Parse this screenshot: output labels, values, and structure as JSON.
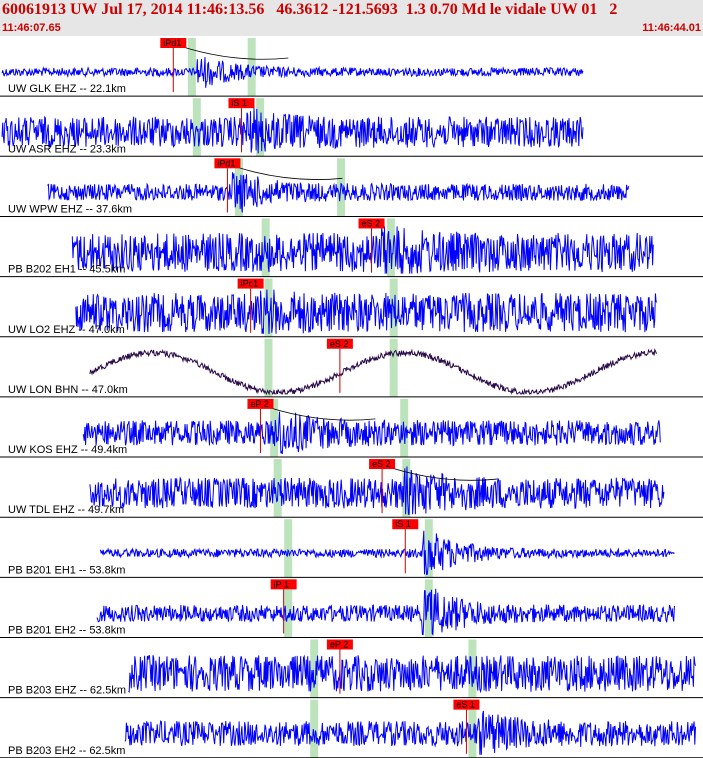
{
  "header": {
    "title": "60061913 UW Jul 17, 2014 11:46:13.56   46.3612 -121.5693  1.3 0.70 Md le vidale UW 01   2",
    "start_time": "11:46:07.65",
    "end_time": "11:46:44.01"
  },
  "colors": {
    "waveform": "#0000ff",
    "dark_waveform": "#2a0a4a",
    "pick_box": "#ff0000",
    "pick_line": "#cc0000",
    "window": "#bde3bd",
    "header_bg": "#e6e6e6",
    "header_text": "#cc0000"
  },
  "traces": [
    {
      "label": "UW GLK EHZ -- 22.1km",
      "start": 0.0,
      "end": 0.83,
      "amp": 0.15,
      "color": "blue",
      "burst": 0.29,
      "burst_gain": 4.0,
      "windows": [
        0.273,
        0.358
      ],
      "picks": [
        {
          "text": "iPd1",
          "pos": 0.228
        }
      ],
      "has_curve": true
    },
    {
      "label": "UW ASR EHZ -- 23.3km",
      "start": 0.0,
      "end": 0.83,
      "amp": 0.55,
      "color": "blue",
      "burst": 0.36,
      "burst_gain": 1.6,
      "windows": [
        0.28,
        0.37
      ],
      "picks": [
        {
          "text": "iS 1",
          "pos": 0.325
        }
      ],
      "has_curve": false
    },
    {
      "label": "UW WPW EHZ -- 37.6km",
      "start": 0.065,
      "end": 0.895,
      "amp": 0.3,
      "color": "blue",
      "burst": 0.34,
      "burst_gain": 2.6,
      "windows": [
        0.34,
        0.485
      ],
      "picks": [
        {
          "text": "iPd1",
          "pos": 0.305
        }
      ],
      "has_curve": true
    },
    {
      "label": "PB B202 EH1 -- 45.5km",
      "start": 0.1,
      "end": 0.93,
      "amp": 0.7,
      "color": "blue",
      "burst": 0.55,
      "burst_gain": 1.5,
      "windows": [
        0.378,
        0.556
      ],
      "picks": [
        {
          "text": "eS 2",
          "pos": 0.51
        }
      ],
      "has_curve": false
    },
    {
      "label": "UW LO2 EHZ -- 47.0km",
      "start": 0.105,
      "end": 0.935,
      "amp": 0.7,
      "color": "blue",
      "burst": 0.38,
      "burst_gain": 1.3,
      "windows": [
        0.382,
        0.56
      ],
      "picks": [
        {
          "text": "iPc1",
          "pos": 0.338
        }
      ],
      "has_curve": false
    },
    {
      "label": "UW LON BHN -- 47.0km",
      "start": 0.125,
      "end": 0.935,
      "amp": 0.5,
      "color": "dark",
      "burst": 0.5,
      "burst_gain": 1.0,
      "windows": [
        0.382,
        0.56
      ],
      "picks": [
        {
          "text": "eS 2",
          "pos": 0.465
        }
      ],
      "has_curve": false,
      "sine": true
    },
    {
      "label": "UW KOS EHZ -- 49.4km",
      "start": 0.115,
      "end": 0.94,
      "amp": 0.45,
      "color": "blue",
      "burst": 0.4,
      "burst_gain": 2.0,
      "windows": [
        0.39,
        0.575
      ],
      "picks": [
        {
          "text": "eP 2",
          "pos": 0.352
        }
      ],
      "has_curve": true
    },
    {
      "label": "UW TDL EHZ -- 49.7km",
      "start": 0.125,
      "end": 0.945,
      "amp": 0.55,
      "color": "blue",
      "burst": 0.58,
      "burst_gain": 1.8,
      "windows": [
        0.395,
        0.578
      ],
      "picks": [
        {
          "text": "eS 2",
          "pos": 0.525
        }
      ],
      "has_curve": true
    },
    {
      "label": "PB B201 EH1 -- 53.8km",
      "start": 0.14,
      "end": 0.96,
      "amp": 0.15,
      "color": "blue",
      "burst": 0.61,
      "burst_gain": 6.0,
      "windows": [
        0.41,
        0.61
      ],
      "picks": [
        {
          "text": "iS 1",
          "pos": 0.558
        }
      ],
      "has_curve": false
    },
    {
      "label": "PB B201 EH2 -- 53.8km",
      "start": 0.135,
      "end": 0.96,
      "amp": 0.3,
      "color": "blue",
      "burst": 0.61,
      "burst_gain": 3.4,
      "windows": [
        0.41,
        0.61
      ],
      "picks": [
        {
          "text": "iP 1",
          "pos": 0.385
        }
      ],
      "has_curve": false
    },
    {
      "label": "PB B203 EHZ -- 62.5km",
      "start": 0.18,
      "end": 0.99,
      "amp": 0.65,
      "color": "blue",
      "burst": 0.5,
      "burst_gain": 1.0,
      "windows": [
        0.447,
        0.672
      ],
      "picks": [
        {
          "text": "eP 2",
          "pos": 0.465
        }
      ],
      "has_curve": false
    },
    {
      "label": "PB B203 EH2 -- 62.5km",
      "start": 0.175,
      "end": 0.99,
      "amp": 0.45,
      "color": "blue",
      "burst": 0.69,
      "burst_gain": 1.9,
      "windows": [
        0.447,
        0.672
      ],
      "picks": [
        {
          "text": "eS 1",
          "pos": 0.645
        }
      ],
      "has_curve": false
    }
  ]
}
